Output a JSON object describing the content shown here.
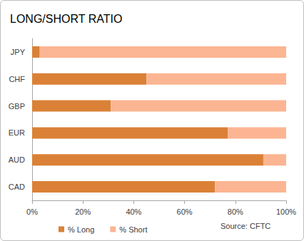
{
  "chart_data": {
    "type": "bar",
    "title": "LONG/SHORT RATIO",
    "annotation": "Source: CFTC",
    "categories": [
      "JPY",
      "CHF",
      "GBP",
      "EUR",
      "AUD",
      "CAD"
    ],
    "series": [
      {
        "name": "% Long",
        "color": "#da8137",
        "values": [
          3,
          45,
          31,
          77,
          91,
          72
        ]
      },
      {
        "name": "% Short",
        "color": "#fbb592",
        "values": [
          97,
          55,
          69,
          23,
          9,
          28
        ]
      }
    ],
    "orientation": "horizontal",
    "stacked": true,
    "xlim": [
      0,
      100
    ],
    "xticks": [
      {
        "value": 0,
        "label": "0%"
      },
      {
        "value": 20,
        "label": "20%"
      },
      {
        "value": 40,
        "label": "40%"
      },
      {
        "value": 60,
        "label": "60%"
      },
      {
        "value": 80,
        "label": "80%"
      },
      {
        "value": 100,
        "label": "100%"
      }
    ],
    "grid": false,
    "legend": "bottom"
  }
}
